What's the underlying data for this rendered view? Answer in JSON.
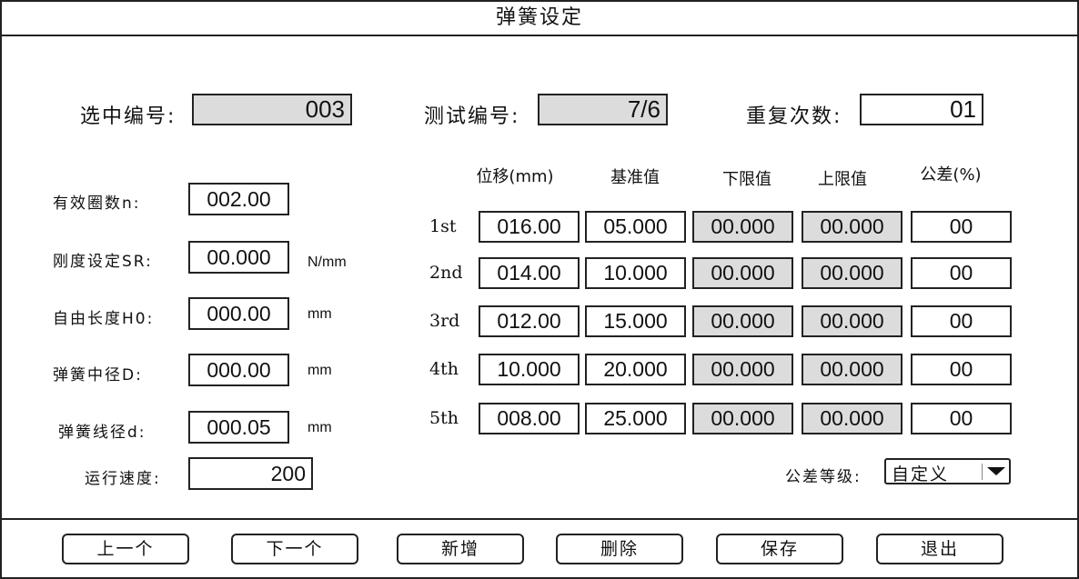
{
  "title": "弹簧设定",
  "top": {
    "selected_no": {
      "label": "选中编号:",
      "value": "003"
    },
    "test_no": {
      "label": "测试编号:",
      "value": "7/6"
    },
    "repeat": {
      "label": "重复次数:",
      "value": "01"
    }
  },
  "params": [
    {
      "label": "有效圈数n:",
      "value": "002.00",
      "unit": ""
    },
    {
      "label": "刚度设定SR:",
      "value": "00.000",
      "unit": "N/mm"
    },
    {
      "label": "自由长度H0:",
      "value": "000.00",
      "unit": "mm"
    },
    {
      "label": "弹簧中径D:",
      "value": "000.00",
      "unit": "mm"
    },
    {
      "label": "弹簧线径d:",
      "value": "000.05",
      "unit": "mm"
    }
  ],
  "speed": {
    "label": "运行速度:",
    "value": "200"
  },
  "table": {
    "headers": [
      "位移(mm)",
      "基准值",
      "下限值",
      "上限值",
      "公差(%)"
    ],
    "rows": [
      {
        "label": "1st",
        "cells": [
          "016.00",
          "05.000",
          "00.000",
          "00.000",
          "00"
        ]
      },
      {
        "label": "2nd",
        "cells": [
          "014.00",
          "10.000",
          "00.000",
          "00.000",
          "00"
        ]
      },
      {
        "label": "3rd",
        "cells": [
          "012.00",
          "15.000",
          "00.000",
          "00.000",
          "00"
        ]
      },
      {
        "label": "4th",
        "cells": [
          "10.000",
          "20.000",
          "00.000",
          "00.000",
          "00"
        ]
      },
      {
        "label": "5th",
        "cells": [
          "008.00",
          "25.000",
          "00.000",
          "00.000",
          "00"
        ]
      }
    ]
  },
  "tolerance_grade": {
    "label": "公差等级:",
    "value": "自定义"
  },
  "buttons": [
    "上一个",
    "下一个",
    "新增",
    "删除",
    "保存",
    "退出"
  ]
}
